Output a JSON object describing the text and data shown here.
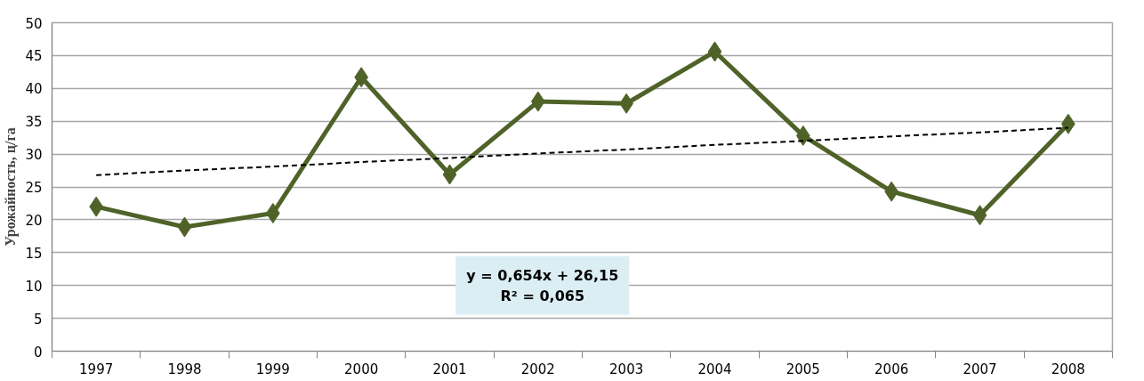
{
  "chart_data": {
    "type": "line",
    "ylabel": "Урожайность, ц/га",
    "categories": [
      "1997",
      "1998",
      "1999",
      "2000",
      "2001",
      "2002",
      "2003",
      "2004",
      "2005",
      "2006",
      "2007",
      "2008"
    ],
    "series": [
      {
        "color": "#4f6228",
        "marker": "diamond",
        "line_style": "solid",
        "values": [
          22.0,
          18.9,
          21.0,
          41.7,
          26.9,
          38.0,
          37.7,
          45.6,
          32.8,
          24.3,
          20.7,
          34.6
        ]
      },
      {
        "color": "#000000",
        "marker": "none",
        "line_style": "dashed",
        "values": [
          26.8,
          27.5,
          28.1,
          28.8,
          29.4,
          30.1,
          30.7,
          31.4,
          32.0,
          32.7,
          33.3,
          34.0
        ]
      }
    ],
    "ylim": [
      0,
      50
    ],
    "yticks": [
      0,
      5,
      10,
      15,
      20,
      25,
      30,
      35,
      40,
      45,
      50
    ],
    "grid": "y",
    "annotations": [
      "y = 0,654x + 26,15",
      "R² = 0,065"
    ]
  }
}
